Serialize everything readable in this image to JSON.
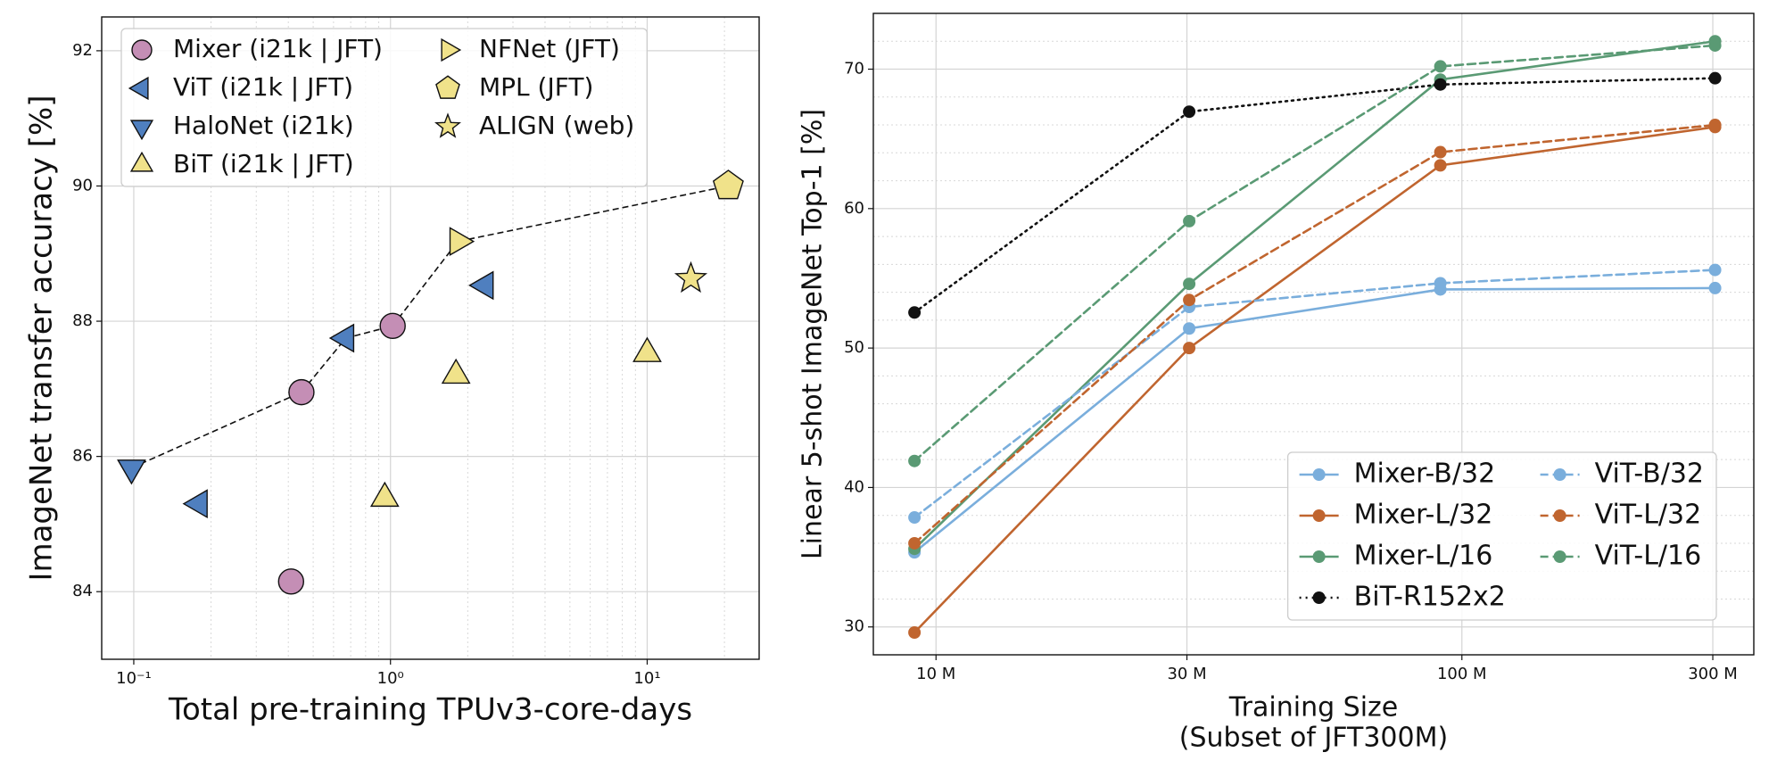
{
  "chart_data": [
    {
      "type": "scatter",
      "xlabel": "Total pre-training TPUv3-core-days",
      "ylabel": "ImageNet transfer accuracy [%]",
      "xscale": "log",
      "xlim": [
        0.075,
        27.3
      ],
      "ylim": [
        83,
        92.5
      ],
      "xticks": [
        {
          "value": 0.1,
          "label": "10⁻¹"
        },
        {
          "value": 1,
          "label": "10⁰"
        },
        {
          "value": 10,
          "label": "10¹"
        }
      ],
      "xminor_grid": [
        0.2,
        0.3,
        0.4,
        0.5,
        0.6,
        0.7,
        0.8,
        0.9,
        2,
        3,
        4,
        5,
        6,
        7,
        8,
        9,
        20
      ],
      "yticks": [
        84,
        86,
        88,
        90,
        92
      ],
      "grid": true,
      "legend": "upper left",
      "legend_columns": 2,
      "series": [
        {
          "name": "Mixer (i21k | JFT)",
          "color": "#c48eb5",
          "marker": "circle",
          "x": [
            0.41,
            0.45,
            1.02
          ],
          "values": [
            84.15,
            86.95,
            87.93
          ]
        },
        {
          "name": "ViT (i21k | JFT)",
          "color": "#4f7fbf",
          "marker": "triangle-left",
          "x": [
            0.18,
            0.67,
            2.34
          ],
          "values": [
            85.3,
            87.75,
            88.53
          ]
        },
        {
          "name": "HaloNet (i21k)",
          "color": "#4f7fbf",
          "marker": "triangle-down",
          "x": [
            0.098
          ],
          "values": [
            85.83
          ]
        },
        {
          "name": "BiT (i21k | JFT)",
          "color": "#f0e28a",
          "marker": "triangle-up",
          "x": [
            0.95,
            1.8,
            10
          ],
          "values": [
            85.38,
            87.2,
            87.52
          ]
        },
        {
          "name": "NFNet (JFT)",
          "color": "#f0e28a",
          "marker": "triangle-right",
          "x": [
            1.83
          ],
          "values": [
            89.18
          ]
        },
        {
          "name": "MPL (JFT)",
          "color": "#f0e28a",
          "marker": "pentagon",
          "x": [
            20.7
          ],
          "values": [
            90.0
          ]
        },
        {
          "name": "ALIGN (web)",
          "color": "#f0e28a",
          "marker": "star",
          "x": [
            14.8
          ],
          "values": [
            88.63
          ]
        }
      ],
      "frontier": {
        "x": [
          0.098,
          0.45,
          0.67,
          1.02,
          1.83,
          20.7
        ],
        "values": [
          85.83,
          86.95,
          87.75,
          87.93,
          89.18,
          90.0
        ]
      }
    },
    {
      "type": "line",
      "xlabel": [
        "Training Size",
        "(Subset of JFT300M)"
      ],
      "ylabel": "Linear 5-shot ImageNet Top-1 [%]",
      "xscale": "log",
      "xlim": [
        7.6,
        359
      ],
      "ylim": [
        28,
        74
      ],
      "xticks": [
        {
          "value": 10,
          "label": "10 M"
        },
        {
          "value": 30,
          "label": "30 M"
        },
        {
          "value": 100,
          "label": "100 M"
        },
        {
          "value": 300,
          "label": "300 M"
        }
      ],
      "yticks": [
        30,
        40,
        50,
        60,
        70
      ],
      "yminor_grid": [
        28,
        32,
        34,
        36,
        38,
        42,
        44,
        46,
        48,
        52,
        54,
        56,
        58,
        62,
        64,
        66,
        68,
        72,
        74
      ],
      "grid": true,
      "legend": "lower right",
      "legend_columns": 2,
      "x": [
        9.1,
        30.3,
        91,
        303
      ],
      "series": [
        {
          "name": "Mixer-B/32",
          "color": "#7aaedc",
          "dash": "solid",
          "values": [
            35.35,
            51.4,
            54.2,
            54.3
          ]
        },
        {
          "name": "Mixer-L/32",
          "color": "#c0652f",
          "dash": "solid",
          "values": [
            29.6,
            50.0,
            63.1,
            65.85
          ]
        },
        {
          "name": "Mixer-L/16",
          "color": "#5a9a74",
          "dash": "solid",
          "values": [
            35.6,
            54.6,
            69.25,
            72.0
          ]
        },
        {
          "name": "BiT-R152x2",
          "color": "#111111",
          "dash": "dotted",
          "values": [
            52.55,
            66.95,
            68.9,
            69.35
          ]
        },
        {
          "name": "ViT-B/32",
          "color": "#7aaedc",
          "dash": "dashed",
          "values": [
            37.85,
            52.95,
            54.65,
            55.6
          ]
        },
        {
          "name": "ViT-L/32",
          "color": "#c0652f",
          "dash": "dashed",
          "values": [
            36.0,
            53.45,
            64.05,
            66.0
          ]
        },
        {
          "name": "ViT-L/16",
          "color": "#5a9a74",
          "dash": "dashed",
          "values": [
            41.9,
            59.1,
            70.2,
            71.7
          ]
        }
      ]
    }
  ]
}
